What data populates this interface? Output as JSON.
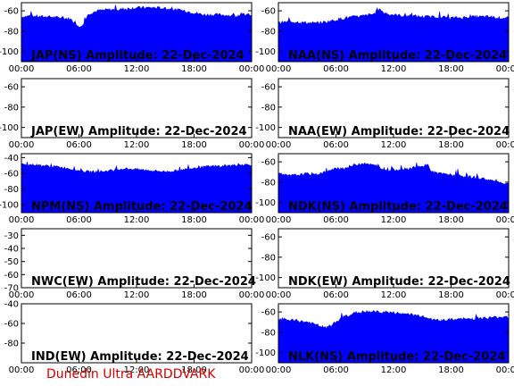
{
  "colors": {
    "fill": "#0000ff",
    "frame": "#000000",
    "background": "#ffffff",
    "footer": "#cc0000"
  },
  "footer": "Dunedin Ultra AARDDVARK",
  "x_ticks": [
    "00:00",
    "06:00",
    "12:00",
    "18:00",
    "00:00"
  ],
  "chart_data": [
    {
      "type": "area",
      "title": "JAP(NS) Amplitude: 22-Dec-2024",
      "xlim": [
        0,
        24
      ],
      "ylim": [
        -110,
        -52
      ],
      "y_ticks": [
        "-60",
        "-80",
        "-100"
      ],
      "x": [
        0,
        1,
        2,
        3,
        4,
        5,
        5.5,
        6,
        6.5,
        7,
        8,
        9,
        10,
        11,
        12,
        13,
        14,
        15,
        16,
        17,
        18,
        19,
        20,
        21,
        22,
        23,
        24
      ],
      "y": [
        -66,
        -65,
        -66,
        -66,
        -67,
        -68,
        -70,
        -76,
        -72,
        -63,
        -60,
        -59,
        -59,
        -58,
        -57,
        -57,
        -57,
        -58,
        -59,
        -60,
        -62,
        -64,
        -64,
        -64,
        -65,
        -64,
        -64
      ]
    },
    {
      "type": "area",
      "title": "NAA(NS) Amplitude: 22-Dec-2024",
      "xlim": [
        0,
        24
      ],
      "ylim": [
        -110,
        -52
      ],
      "y_ticks": [
        "-60",
        "-80",
        "-100"
      ],
      "x": [
        0,
        1,
        2,
        3,
        4,
        5,
        6,
        7,
        8,
        9,
        10,
        10.5,
        11,
        11.5,
        12,
        13,
        14,
        15,
        16,
        17,
        18,
        19,
        20,
        21,
        22,
        23,
        24
      ],
      "y": [
        -72,
        -71,
        -71,
        -72,
        -72,
        -71,
        -69,
        -67,
        -66,
        -65,
        -63,
        -58,
        -62,
        -63,
        -64,
        -65,
        -65,
        -66,
        -66,
        -66,
        -67,
        -67,
        -66,
        -66,
        -66,
        -67,
        -67
      ]
    },
    {
      "type": "area",
      "title": "JAP(EW) Amplitude: 22-Dec-2024",
      "xlim": [
        0,
        24
      ],
      "ylim": [
        -110,
        -52
      ],
      "y_ticks": [
        "-60",
        "-80",
        "-100"
      ],
      "x": [],
      "y": []
    },
    {
      "type": "area",
      "title": "NAA(EW) Amplitude: 22-Dec-2024",
      "xlim": [
        0,
        24
      ],
      "ylim": [
        -110,
        -52
      ],
      "y_ticks": [
        "-60",
        "-80",
        "-100"
      ],
      "x": [],
      "y": []
    },
    {
      "type": "area",
      "title": "NPM(NS) Amplitude: 22-Dec-2024",
      "xlim": [
        0,
        24
      ],
      "ylim": [
        -110,
        -35
      ],
      "y_ticks": [
        "-40",
        "-60",
        "-80",
        "-100"
      ],
      "x": [
        0,
        1,
        2,
        3,
        4,
        5,
        6,
        7,
        8,
        9,
        10,
        11,
        12,
        13,
        14,
        15,
        16,
        17,
        18,
        19,
        20,
        21,
        22,
        23,
        24
      ],
      "y": [
        -49,
        -49,
        -50,
        -51,
        -52,
        -54,
        -57,
        -58,
        -58,
        -57,
        -55,
        -54,
        -55,
        -56,
        -57,
        -58,
        -57,
        -55,
        -53,
        -52,
        -51,
        -51,
        -50,
        -49,
        -49
      ]
    },
    {
      "type": "area",
      "title": "NDK(NS) Amplitude: 22-Dec-2024",
      "xlim": [
        0,
        24
      ],
      "ylim": [
        -110,
        -52
      ],
      "y_ticks": [
        "-60",
        "-80",
        "-100"
      ],
      "x": [
        0,
        1,
        2,
        3,
        4,
        5,
        6,
        7,
        8,
        9,
        10,
        11,
        12,
        13,
        14,
        15,
        15.5,
        16,
        17,
        18,
        19,
        20,
        21,
        22,
        23,
        24
      ],
      "y": [
        -72,
        -74,
        -73,
        -72,
        -72,
        -70,
        -67,
        -66,
        -63,
        -61,
        -64,
        -67,
        -68,
        -67,
        -66,
        -65,
        -62,
        -70,
        -72,
        -73,
        -74,
        -75,
        -76,
        -78,
        -80,
        -82
      ]
    },
    {
      "type": "area",
      "title": "NWC(EW) Amplitude: 22-Dec-2024",
      "xlim": [
        0,
        24
      ],
      "ylim": [
        -70,
        -25
      ],
      "y_ticks": [
        "-30",
        "-40",
        "-50",
        "-60",
        "-70"
      ],
      "x": [],
      "y": []
    },
    {
      "type": "area",
      "title": "NDK(EW) Amplitude: 22-Dec-2024",
      "xlim": [
        0,
        24
      ],
      "ylim": [
        -110,
        -52
      ],
      "y_ticks": [
        "-60",
        "-80",
        "-100"
      ],
      "x": [],
      "y": []
    },
    {
      "type": "area",
      "title": "IND(EW) Amplitude: 22-Dec-2024",
      "xlim": [
        0,
        24
      ],
      "ylim": [
        -100,
        -40
      ],
      "y_ticks": [
        "-40",
        "-60",
        "-80"
      ],
      "x": [],
      "y": []
    },
    {
      "type": "area",
      "title": "NLK(NS) Amplitude: 22-Dec-2024",
      "xlim": [
        0,
        24
      ],
      "ylim": [
        -110,
        -52
      ],
      "y_ticks": [
        "-60",
        "-80",
        "-100"
      ],
      "x": [
        0,
        1,
        2,
        3,
        4,
        5,
        6,
        7,
        8,
        9,
        10,
        11,
        12,
        13,
        14,
        15,
        15.5,
        16,
        17,
        18,
        19,
        20,
        21,
        22,
        23,
        24
      ],
      "y": [
        -67,
        -68,
        -69,
        -70,
        -73,
        -76,
        -70,
        -64,
        -61,
        -60,
        -60,
        -60,
        -61,
        -62,
        -63,
        -64,
        -65,
        -68,
        -68,
        -68,
        -67,
        -67,
        -66,
        -66,
        -65,
        -65
      ]
    }
  ]
}
